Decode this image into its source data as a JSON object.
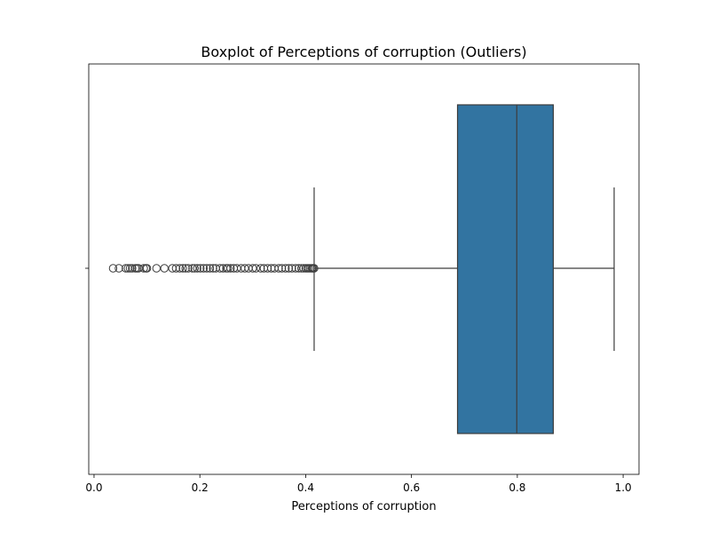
{
  "chart_data": {
    "type": "boxplot",
    "title": "Boxplot of Perceptions of corruption (Outliers)",
    "xlabel": "Perceptions of corruption",
    "ylabel": "",
    "xlim": [
      -0.01,
      1.03
    ],
    "xticks": [
      0.0,
      0.2,
      0.4,
      0.6,
      0.8,
      1.0
    ],
    "xtick_labels": [
      "0.0",
      "0.2",
      "0.4",
      "0.6",
      "0.8",
      "1.0"
    ],
    "grid": false,
    "orientation": "horizontal",
    "box": {
      "q1": 0.687,
      "median": 0.799,
      "q3": 0.868,
      "whisker_low": 0.416,
      "whisker_high": 0.983,
      "color": "#3274a1",
      "edge_color": "#3d3d3d"
    },
    "outliers": [
      0.036,
      0.047,
      0.06,
      0.064,
      0.068,
      0.072,
      0.078,
      0.081,
      0.084,
      0.094,
      0.098,
      0.1,
      0.118,
      0.133,
      0.148,
      0.155,
      0.162,
      0.168,
      0.173,
      0.178,
      0.186,
      0.19,
      0.195,
      0.201,
      0.207,
      0.213,
      0.219,
      0.225,
      0.23,
      0.238,
      0.244,
      0.25,
      0.253,
      0.258,
      0.264,
      0.27,
      0.278,
      0.285,
      0.292,
      0.3,
      0.306,
      0.315,
      0.321,
      0.328,
      0.335,
      0.341,
      0.349,
      0.355,
      0.362,
      0.368,
      0.374,
      0.381,
      0.387,
      0.392,
      0.396,
      0.4,
      0.403,
      0.406,
      0.409,
      0.412,
      0.414,
      0.416
    ]
  }
}
